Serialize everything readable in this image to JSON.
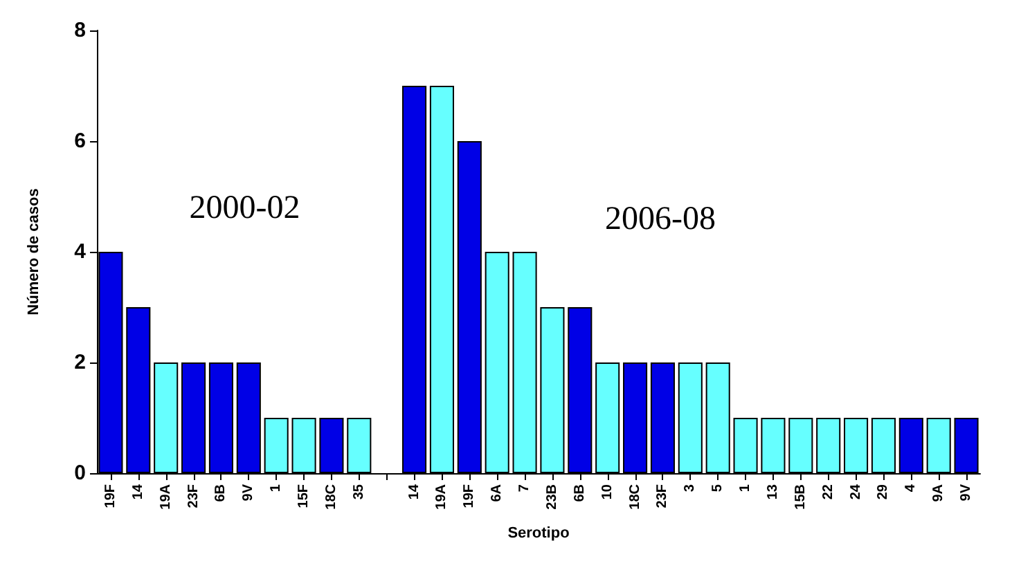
{
  "chart_data": {
    "type": "bar",
    "xlabel": "Serotipo",
    "ylabel": "Número de casos",
    "categories": [
      "19F",
      "14",
      "19A",
      "23F",
      "6B",
      "9V",
      "1",
      "15F",
      "18C",
      "35",
      null,
      "14",
      "19A",
      "19F",
      "6A",
      "7",
      "23B",
      "6B",
      "10",
      "18C",
      "23F",
      "3",
      "5",
      "1",
      "13",
      "15B",
      "22",
      "24",
      "29",
      "4",
      "9A",
      "9V"
    ],
    "values": [
      4,
      3,
      2,
      2,
      2,
      2,
      1,
      1,
      1,
      1,
      null,
      7,
      7,
      6,
      4,
      4,
      3,
      3,
      2,
      2,
      2,
      2,
      2,
      1,
      1,
      1,
      1,
      1,
      1,
      1,
      1,
      1
    ],
    "colors": [
      "#0000e6",
      "#0000e6",
      "#66ffff",
      "#0000e6",
      "#0000e6",
      "#0000e6",
      "#66ffff",
      "#66ffff",
      "#0000e6",
      "#66ffff",
      "#ffffff",
      "#0000e6",
      "#66ffff",
      "#0000e6",
      "#66ffff",
      "#66ffff",
      "#66ffff",
      "#0000e6",
      "#66ffff",
      "#0000e6",
      "#0000e6",
      "#66ffff",
      "#66ffff",
      "#66ffff",
      "#66ffff",
      "#66ffff",
      "#66ffff",
      "#66ffff",
      "#66ffff",
      "#0000e6",
      "#66ffff",
      "#0000e6"
    ],
    "ylim": [
      0,
      8
    ],
    "yticks": [
      0,
      2,
      4,
      6,
      8
    ],
    "grid": false,
    "annotations": [
      "2000-02",
      "2006-08"
    ]
  }
}
